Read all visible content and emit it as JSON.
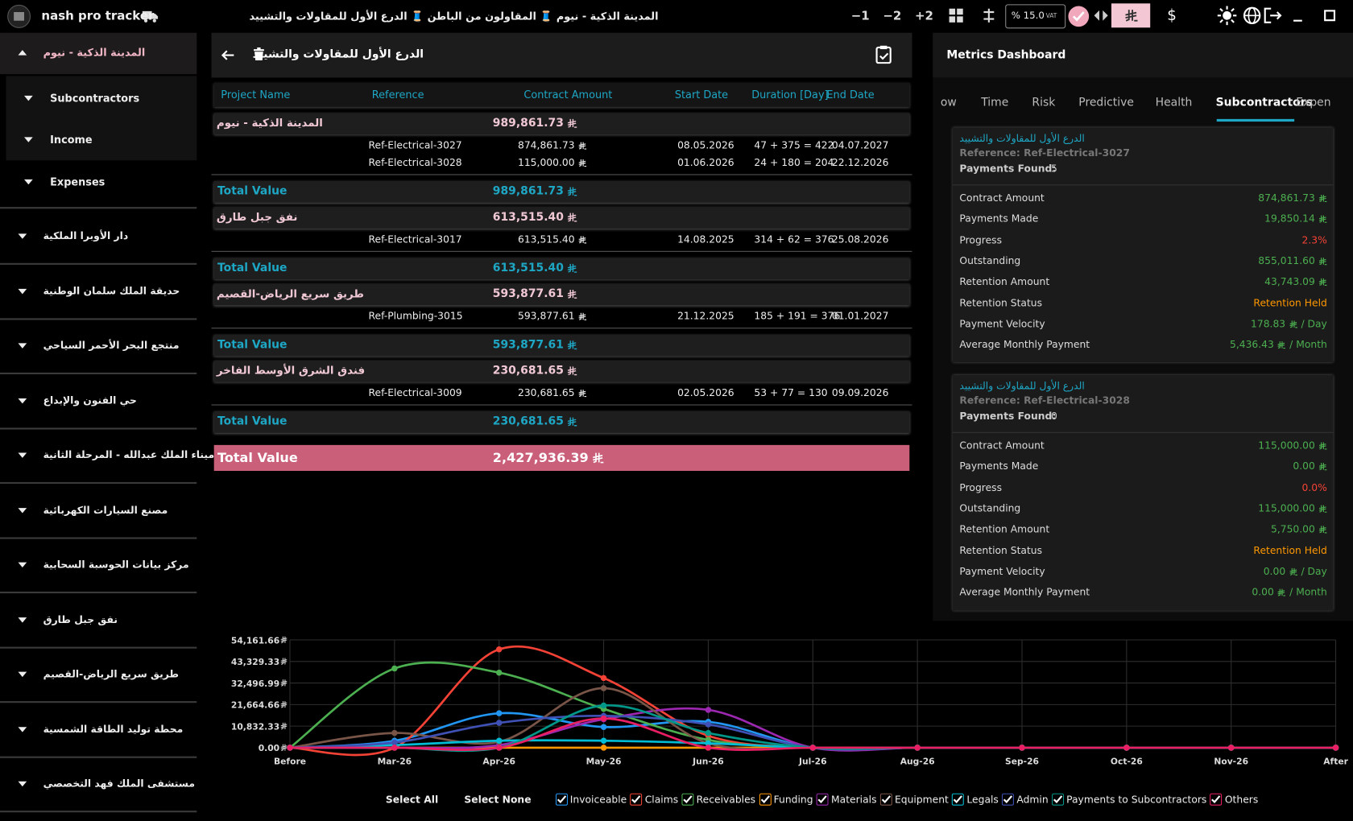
{
  "top_bar": {
    "app_name": "nash pro tracker",
    "breadcrumb": "المدينة الذكية - نيوم 🧵 المقاولون من الباطن 🧵 الدرع الأول للمقاولات والتشييد",
    "offset_buttons": [
      "−1",
      "−2",
      "+2"
    ],
    "vat_value": "% 15.0",
    "vat_label": "VAT",
    "usd": "$"
  },
  "sidebar": {
    "expanded": {
      "title": "المدينة الذكية - نيوم",
      "children": [
        "Subcontractors",
        "Income",
        "Expenses"
      ]
    },
    "projects": [
      "دار الأوبرا الملكية",
      "حديقة الملك سلمان الوطنية",
      "منتجع البحر الأحمر السياحي",
      "حي الفنون والإبداع",
      "ميناء الملك عبدالله - المرحلة الثانية",
      "مصنع السيارات الكهربائية",
      "مركز بيانات الحوسبة السحابية",
      "نفق جبل طارق",
      "طريق سريع الرياض-القصيم",
      "محطة توليد الطاقة الشمسية",
      "مستشفى الملك فهد التخصصي"
    ]
  },
  "detail": {
    "title": "الدرع الأول للمقاولات والتشييد",
    "columns": [
      "Project Name",
      "Reference",
      "Contract Amount",
      "Start Date",
      "Duration [Day]",
      "End Date"
    ],
    "groups": [
      {
        "name": "المدينة الذكية - نيوم",
        "amount": "989,861.73",
        "rows": [
          {
            "reference": "Ref-Electrical-3027",
            "amount": "874,861.73",
            "start": "08.05.2026",
            "duration": "47 + 375 = 422",
            "end": "04.07.2027"
          },
          {
            "reference": "Ref-Electrical-3028",
            "amount": "115,000.00",
            "start": "01.06.2026",
            "duration": "24 + 180 = 204",
            "end": "22.12.2026"
          }
        ],
        "total_label": "Total Value",
        "total": "989,861.73"
      },
      {
        "name": "نفق جبل طارق",
        "amount": "613,515.40",
        "rows": [
          {
            "reference": "Ref-Electrical-3017",
            "amount": "613,515.40",
            "start": "14.08.2025",
            "duration": "314 + 62 = 376",
            "end": "25.08.2026"
          }
        ],
        "total_label": "Total Value",
        "total": "613,515.40"
      },
      {
        "name": "طريق سريع الرياض-القصيم",
        "amount": "593,877.61",
        "rows": [
          {
            "reference": "Ref-Plumbing-3015",
            "amount": "593,877.61",
            "start": "21.12.2025",
            "duration": "185 + 191 = 376",
            "end": "01.01.2027"
          }
        ],
        "total_label": "Total Value",
        "total": "593,877.61"
      },
      {
        "name": "فندق الشرق الأوسط الفاخر",
        "amount": "230,681.65",
        "rows": [
          {
            "reference": "Ref-Electrical-3009",
            "amount": "230,681.65",
            "start": "02.05.2026",
            "duration": "53 + 77 = 130",
            "end": "09.09.2026"
          }
        ],
        "total_label": "Total Value",
        "total": "230,681.65"
      }
    ],
    "grand_total_label": "Total Value",
    "grand_total": "2,427,936.39"
  },
  "metrics": {
    "title": "Metrics Dashboard",
    "tabs": [
      "ow",
      "Time",
      "Risk",
      "Predictive",
      "Health",
      "Subcontractors",
      "Expen"
    ],
    "active_tab": 5,
    "cards": [
      {
        "company": "الدرع الأول للمقاولات والتشييد",
        "reference": "Reference: Ref-Electrical-3027",
        "payments_label": "Payments Found:",
        "payments_found": "5",
        "metrics": [
          {
            "label": "Contract Amount",
            "value": "874,861.73",
            "currency": true,
            "tone": "green"
          },
          {
            "label": "Payments Made",
            "value": "19,850.14",
            "currency": true,
            "tone": "green"
          },
          {
            "label": "Progress",
            "value": "2.3%",
            "currency": false,
            "tone": "red"
          },
          {
            "label": "Outstanding",
            "value": "855,011.60",
            "currency": true,
            "tone": "green"
          },
          {
            "label": "Retention Amount",
            "value": "43,743.09",
            "currency": true,
            "tone": "green"
          },
          {
            "label": "Retention Status",
            "value": "Retention Held",
            "currency": false,
            "tone": "orange"
          },
          {
            "label": "Payment Velocity",
            "value": "178.83",
            "currency": true,
            "unit": "/ Day",
            "tone": "green"
          },
          {
            "label": "Average Monthly Payment",
            "value": "5,436.43",
            "currency": true,
            "unit": "/ Month",
            "tone": "green"
          }
        ]
      },
      {
        "company": "الدرع الأول للمقاولات والتشييد",
        "reference": "Reference: Ref-Electrical-3028",
        "payments_label": "Payments Found:",
        "payments_found": "0",
        "metrics": [
          {
            "label": "Contract Amount",
            "value": "115,000.00",
            "currency": true,
            "tone": "green"
          },
          {
            "label": "Payments Made",
            "value": "0.00",
            "currency": true,
            "tone": "green"
          },
          {
            "label": "Progress",
            "value": "0.0%",
            "currency": false,
            "tone": "red"
          },
          {
            "label": "Outstanding",
            "value": "115,000.00",
            "currency": true,
            "tone": "green"
          },
          {
            "label": "Retention Amount",
            "value": "5,750.00",
            "currency": true,
            "tone": "green"
          },
          {
            "label": "Retention Status",
            "value": "Retention Held",
            "currency": false,
            "tone": "orange"
          },
          {
            "label": "Payment Velocity",
            "value": "0.00",
            "currency": true,
            "unit": "/ Day",
            "tone": "green"
          },
          {
            "label": "Average Monthly Payment",
            "value": "0.00",
            "currency": true,
            "unit": "/ Month",
            "tone": "green"
          }
        ]
      }
    ]
  },
  "chart_data": {
    "type": "line",
    "categories": [
      "Before",
      "Mar-26",
      "Apr-26",
      "May-26",
      "Jun-26",
      "Jul-26",
      "Aug-26",
      "Sep-26",
      "Oct-26",
      "Nov-26",
      "After"
    ],
    "ylim": [
      0,
      54161.66
    ],
    "yticks": [
      {
        "value": 0,
        "label": "0.00"
      },
      {
        "value": 10832.33,
        "label": "10,832.33"
      },
      {
        "value": 21664.66,
        "label": "21,664.66"
      },
      {
        "value": 32496.99,
        "label": "32,496.99"
      },
      {
        "value": 43329.33,
        "label": "43,329.33"
      },
      {
        "value": 54161.66,
        "label": "54,161.66"
      }
    ],
    "grid": true,
    "select_all": "Select All",
    "select_none": "Select None",
    "series": [
      {
        "name": "Invoiceable",
        "color": "#2196f3",
        "values": [
          0,
          3500,
          17300,
          10400,
          13000,
          0,
          0,
          0,
          0,
          0,
          0
        ]
      },
      {
        "name": "Claims",
        "color": "#f44336",
        "values": [
          0,
          0,
          49400,
          35000,
          6000,
          0,
          0,
          0,
          0,
          0,
          0
        ]
      },
      {
        "name": "Receivables",
        "color": "#4caf50",
        "values": [
          0,
          39800,
          37700,
          19500,
          3900,
          0,
          0,
          0,
          0,
          0,
          0
        ]
      },
      {
        "name": "Funding",
        "color": "#ff9800",
        "values": [
          0,
          0,
          0,
          0,
          0,
          0,
          0,
          0,
          0,
          0,
          0
        ]
      },
      {
        "name": "Materials",
        "color": "#9c27b0",
        "values": [
          0,
          0,
          1300,
          14300,
          19000,
          0,
          0,
          0,
          0,
          0,
          0
        ]
      },
      {
        "name": "Equipment",
        "color": "#795548",
        "values": [
          0,
          7400,
          3000,
          29900,
          2200,
          0,
          0,
          0,
          0,
          0,
          0
        ]
      },
      {
        "name": "Legals",
        "color": "#00bcd4",
        "values": [
          0,
          1300,
          3500,
          3500,
          2200,
          0,
          0,
          0,
          0,
          0,
          0
        ]
      },
      {
        "name": "Admin",
        "color": "#3f51b5",
        "values": [
          0,
          2600,
          12500,
          16000,
          11700,
          0,
          0,
          0,
          0,
          0,
          0
        ]
      },
      {
        "name": "Payments to Subcontractors",
        "color": "#009688",
        "values": [
          0,
          0,
          0,
          21200,
          7400,
          0,
          0,
          0,
          0,
          0,
          0
        ]
      },
      {
        "name": "Others",
        "color": "#e91e63",
        "values": [
          0,
          0,
          0,
          14700,
          0,
          0,
          0,
          0,
          0,
          0,
          0
        ]
      }
    ]
  }
}
